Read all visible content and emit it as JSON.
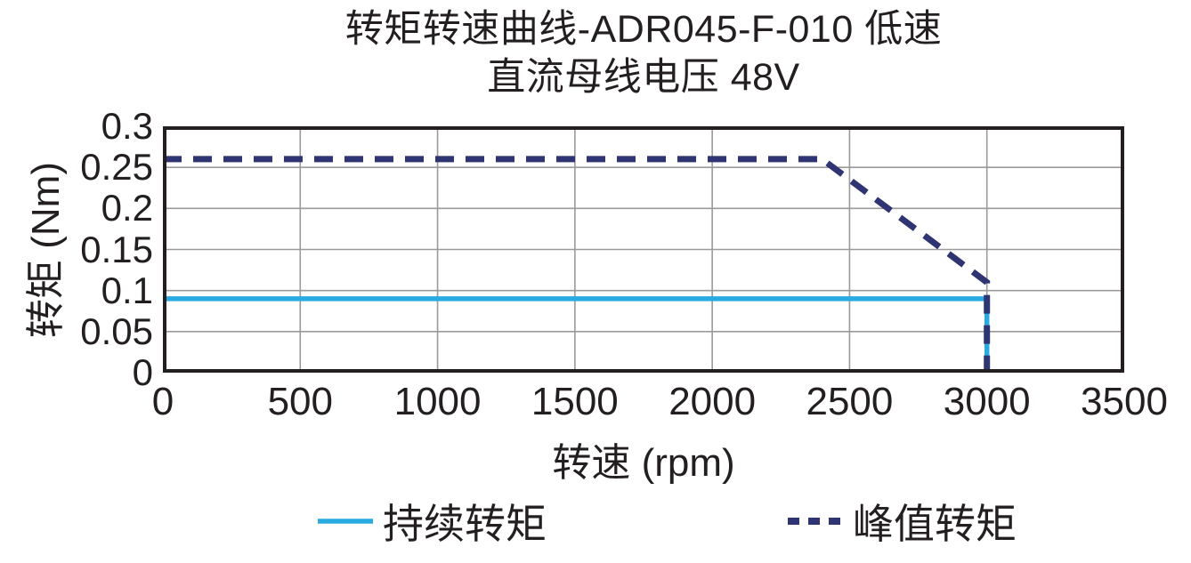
{
  "chart_data": {
    "type": "line",
    "title": "转矩转速曲线-ADR045-F-010 低速",
    "subtitle": "直流母线电压 48V",
    "xlabel": "转速 (rpm)",
    "ylabel": "转矩 (Nm)",
    "xlim": [
      0,
      3500
    ],
    "ylim": [
      0,
      0.3
    ],
    "x_ticks": [
      0,
      500,
      1000,
      1500,
      2000,
      2500,
      3000,
      3500
    ],
    "x_tick_labels": [
      "0",
      "500",
      "1000",
      "1500",
      "2000",
      "2500",
      "3000",
      "3500"
    ],
    "y_ticks": [
      0,
      0.05,
      0.1,
      0.15,
      0.2,
      0.25,
      0.3
    ],
    "y_tick_labels": [
      "0",
      "0.05",
      "0.1",
      "0.15",
      "0.2",
      "0.25",
      "0.3"
    ],
    "grid": true,
    "legend_position": "bottom-center",
    "colors": {
      "text": "#231f20",
      "frame": "#231f20",
      "grid": "#9a9a9a",
      "continuous": "#29abe2",
      "peak": "#2f3472"
    },
    "series": [
      {
        "name": "持续转矩",
        "line_style": "solid",
        "color": "#29abe2",
        "points": [
          [
            0,
            0.09
          ],
          [
            3000,
            0.09
          ],
          [
            3000,
            0
          ]
        ]
      },
      {
        "name": "峰值转矩",
        "line_style": "dashed",
        "color": "#2f3472",
        "points": [
          [
            0,
            0.26
          ],
          [
            2400,
            0.26
          ],
          [
            3000,
            0.11
          ],
          [
            3000,
            0
          ]
        ]
      }
    ]
  }
}
